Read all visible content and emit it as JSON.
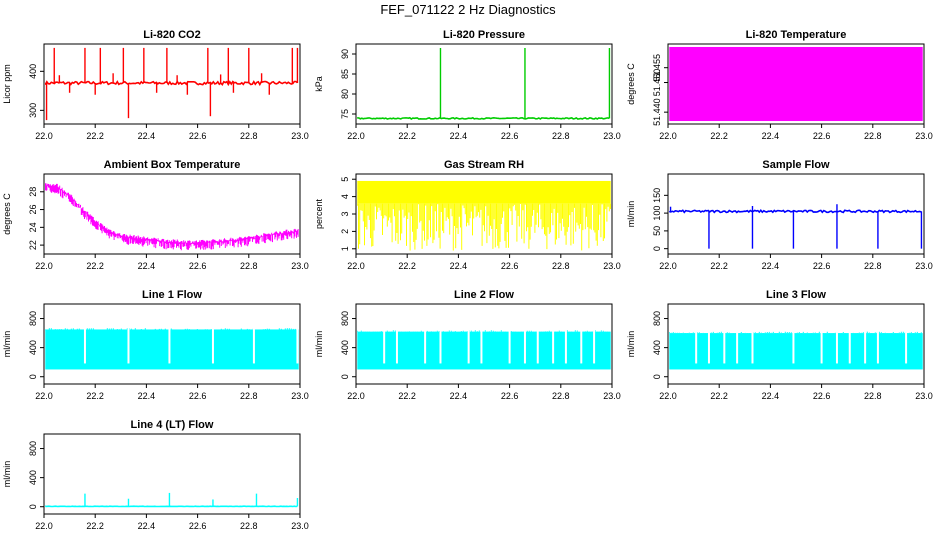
{
  "figure_title": "FEF_071122  2 Hz Diagnostics",
  "colors": {
    "co2": "#ff0000",
    "pressure": "#00cc00",
    "temperature": "#ff00ff",
    "ambient": "#ff00ff",
    "rh": "#ffff00",
    "sample_flow": "#0000ff",
    "line_flow": "#00ffff"
  },
  "chart_data": [
    {
      "type": "line",
      "title": "Li-820 CO2",
      "ylabel": "Licor ppm",
      "xlim": [
        22.0,
        23.0
      ],
      "ylim": [
        265,
        470
      ],
      "xticks": [
        "22.0",
        "22.2",
        "22.4",
        "22.6",
        "22.8",
        "23.0"
      ],
      "xtick_values": [
        22.0,
        22.2,
        22.4,
        22.6,
        22.8,
        23.0
      ],
      "yticks": [
        "300",
        "400"
      ],
      "ytick_values": [
        300,
        400
      ],
      "color": "co2",
      "baseline": 370,
      "noise": 4,
      "spikes": [
        {
          "x": 22.04,
          "y": 460
        },
        {
          "x": 22.16,
          "y": 460
        },
        {
          "x": 22.22,
          "y": 460
        },
        {
          "x": 22.31,
          "y": 460
        },
        {
          "x": 22.39,
          "y": 460
        },
        {
          "x": 22.48,
          "y": 460
        },
        {
          "x": 22.64,
          "y": 460
        },
        {
          "x": 22.72,
          "y": 460
        },
        {
          "x": 22.8,
          "y": 460
        },
        {
          "x": 22.97,
          "y": 460
        },
        {
          "x": 22.99,
          "y": 460
        },
        {
          "x": 22.01,
          "y": 275
        },
        {
          "x": 22.33,
          "y": 280
        },
        {
          "x": 22.65,
          "y": 285
        },
        {
          "x": 22.1,
          "y": 345
        },
        {
          "x": 22.2,
          "y": 340
        },
        {
          "x": 22.44,
          "y": 345
        },
        {
          "x": 22.56,
          "y": 340
        },
        {
          "x": 22.74,
          "y": 345
        },
        {
          "x": 22.88,
          "y": 340
        },
        {
          "x": 22.06,
          "y": 390
        },
        {
          "x": 22.27,
          "y": 395
        },
        {
          "x": 22.52,
          "y": 390
        },
        {
          "x": 22.69,
          "y": 392
        },
        {
          "x": 22.85,
          "y": 395
        }
      ]
    },
    {
      "type": "line",
      "title": "Li-820 Pressure",
      "ylabel": "kPa",
      "xlim": [
        22.0,
        23.0
      ],
      "ylim": [
        72.5,
        92.5
      ],
      "xticks": [
        "22.0",
        "22.2",
        "22.4",
        "22.6",
        "22.8",
        "23.0"
      ],
      "xtick_values": [
        22.0,
        22.2,
        22.4,
        22.6,
        22.8,
        23.0
      ],
      "yticks": [
        "75",
        "80",
        "85",
        "90"
      ],
      "ytick_values": [
        75,
        80,
        85,
        90
      ],
      "color": "pressure",
      "baseline": 73.9,
      "noise": 0.15,
      "spikes": [
        {
          "x": 22.0,
          "y": 90.3
        },
        {
          "x": 22.33,
          "y": 91.5
        },
        {
          "x": 22.66,
          "y": 91.5
        },
        {
          "x": 22.99,
          "y": 91.5
        }
      ]
    },
    {
      "type": "band",
      "title": "Li-820 Temperature",
      "ylabel": "degrees C",
      "xlim": [
        22.0,
        23.0
      ],
      "ylim": [
        51.436,
        51.463
      ],
      "xticks": [
        "22.0",
        "22.2",
        "22.4",
        "22.6",
        "22.8",
        "23.0"
      ],
      "xtick_values": [
        22.0,
        22.2,
        22.4,
        22.6,
        22.8,
        23.0
      ],
      "yticks": [
        "51.440",
        "51.450",
        "51.455"
      ],
      "ytick_values": [
        51.44,
        51.45,
        51.455
      ],
      "color": "temperature",
      "band_low": 51.437,
      "band_high": 51.462
    },
    {
      "type": "line",
      "title": "Ambient Box Temperature",
      "ylabel": "degrees C",
      "xlim": [
        22.0,
        23.0
      ],
      "ylim": [
        21.0,
        30.0
      ],
      "xticks": [
        "22.0",
        "22.2",
        "22.4",
        "22.6",
        "22.8",
        "23.0"
      ],
      "xtick_values": [
        22.0,
        22.2,
        22.4,
        22.6,
        22.8,
        23.0
      ],
      "yticks": [
        "22",
        "24",
        "26",
        "28"
      ],
      "ytick_values": [
        22,
        24,
        26,
        28
      ],
      "color": "ambient",
      "curve": [
        [
          22.0,
          28.7
        ],
        [
          22.05,
          28.6
        ],
        [
          22.1,
          27.5
        ],
        [
          22.15,
          26.0
        ],
        [
          22.2,
          24.6
        ],
        [
          22.25,
          23.6
        ],
        [
          22.3,
          23.0
        ],
        [
          22.4,
          22.6
        ],
        [
          22.5,
          22.3
        ],
        [
          22.6,
          22.2
        ],
        [
          22.7,
          22.4
        ],
        [
          22.8,
          22.7
        ],
        [
          22.9,
          23.2
        ],
        [
          23.0,
          23.6
        ]
      ],
      "noise": 0.6
    },
    {
      "type": "line",
      "title": "Gas Stream RH",
      "ylabel": "percent",
      "xlim": [
        22.0,
        23.0
      ],
      "ylim": [
        0.7,
        5.3
      ],
      "xticks": [
        "22.0",
        "22.2",
        "22.4",
        "22.6",
        "22.8",
        "23.0"
      ],
      "xtick_values": [
        22.0,
        22.2,
        22.4,
        22.6,
        22.8,
        23.0
      ],
      "yticks": [
        "1",
        "2",
        "3",
        "4",
        "5"
      ],
      "ytick_values": [
        1,
        2,
        3,
        4,
        5
      ],
      "color": "rh",
      "band_low": 3.6,
      "band_high": 4.9,
      "dip_min": 0.9
    },
    {
      "type": "line",
      "title": "Sample Flow",
      "ylabel": "ml/min",
      "xlim": [
        22.0,
        23.0
      ],
      "ylim": [
        -15,
        210
      ],
      "xticks": [
        "22.0",
        "22.2",
        "22.4",
        "22.6",
        "22.8",
        "23.0"
      ],
      "xtick_values": [
        22.0,
        22.2,
        22.4,
        22.6,
        22.8,
        23.0
      ],
      "yticks": [
        "0",
        "50",
        "100",
        "150"
      ],
      "ytick_values": [
        0,
        50,
        100,
        150
      ],
      "color": "sample_flow",
      "baseline": 105,
      "noise": 3,
      "spikes": [
        {
          "x": 22.16,
          "y": 0
        },
        {
          "x": 22.33,
          "y": 0
        },
        {
          "x": 22.49,
          "y": 0
        },
        {
          "x": 22.66,
          "y": 0
        },
        {
          "x": 22.82,
          "y": 0
        },
        {
          "x": 22.99,
          "y": 0
        },
        {
          "x": 22.33,
          "y": 120
        },
        {
          "x": 22.66,
          "y": 125
        },
        {
          "x": 22.01,
          "y": 118
        }
      ]
    },
    {
      "type": "line",
      "title": "Line 1 Flow",
      "ylabel": "ml/min",
      "xlim": [
        22.0,
        23.0
      ],
      "ylim": [
        -100,
        1000
      ],
      "xticks": [
        "22.0",
        "22.2",
        "22.4",
        "22.6",
        "22.8",
        "23.0"
      ],
      "xtick_values": [
        22.0,
        22.2,
        22.4,
        22.6,
        22.8,
        23.0
      ],
      "yticks": [
        "0",
        "400",
        "800"
      ],
      "ytick_values": [
        0,
        400,
        800
      ],
      "color": "line_flow",
      "band_low": 100,
      "band_high": 650,
      "gaps": [
        22.16,
        22.33,
        22.49,
        22.66,
        22.82,
        22.99
      ]
    },
    {
      "type": "line",
      "title": "Line 2 Flow",
      "ylabel": "ml/min",
      "xlim": [
        22.0,
        23.0
      ],
      "ylim": [
        -100,
        1000
      ],
      "xticks": [
        "22.0",
        "22.2",
        "22.4",
        "22.6",
        "22.8",
        "23.0"
      ],
      "xtick_values": [
        22.0,
        22.2,
        22.4,
        22.6,
        22.8,
        23.0
      ],
      "yticks": [
        "0",
        "400",
        "800"
      ],
      "ytick_values": [
        0,
        400,
        800
      ],
      "color": "line_flow",
      "band_low": 100,
      "band_high": 620,
      "gaps": [
        22.11,
        22.16,
        22.27,
        22.33,
        22.44,
        22.49,
        22.6,
        22.66,
        22.71,
        22.77,
        22.82,
        22.88,
        22.93
      ]
    },
    {
      "type": "line",
      "title": "Line 3 Flow",
      "ylabel": "ml/min",
      "xlim": [
        22.0,
        23.0
      ],
      "ylim": [
        -100,
        1000
      ],
      "xticks": [
        "22.0",
        "22.2",
        "22.4",
        "22.6",
        "22.8",
        "23.0"
      ],
      "xtick_values": [
        22.0,
        22.2,
        22.4,
        22.6,
        22.8,
        23.0
      ],
      "yticks": [
        "0",
        "400",
        "800"
      ],
      "ytick_values": [
        0,
        400,
        800
      ],
      "color": "line_flow",
      "band_low": 100,
      "band_high": 600,
      "gaps": [
        22.11,
        22.16,
        22.22,
        22.27,
        22.33,
        22.49,
        22.6,
        22.66,
        22.71,
        22.77,
        22.82,
        22.93
      ]
    },
    {
      "type": "line",
      "title": "Line 4 (LT) Flow",
      "ylabel": "ml/min",
      "xlim": [
        22.0,
        23.0
      ],
      "ylim": [
        -100,
        1000
      ],
      "xticks": [
        "22.0",
        "22.2",
        "22.4",
        "22.6",
        "22.8",
        "23.0"
      ],
      "xtick_values": [
        22.0,
        22.2,
        22.4,
        22.6,
        22.8,
        23.0
      ],
      "yticks": [
        "0",
        "400",
        "800"
      ],
      "ytick_values": [
        0,
        400,
        800
      ],
      "color": "line_flow",
      "baseline": 5,
      "noise": 2,
      "spikes": [
        {
          "x": 22.16,
          "y": 180
        },
        {
          "x": 22.33,
          "y": 110
        },
        {
          "x": 22.49,
          "y": 190
        },
        {
          "x": 22.66,
          "y": 100
        },
        {
          "x": 22.83,
          "y": 180
        },
        {
          "x": 22.99,
          "y": 120
        }
      ]
    }
  ]
}
